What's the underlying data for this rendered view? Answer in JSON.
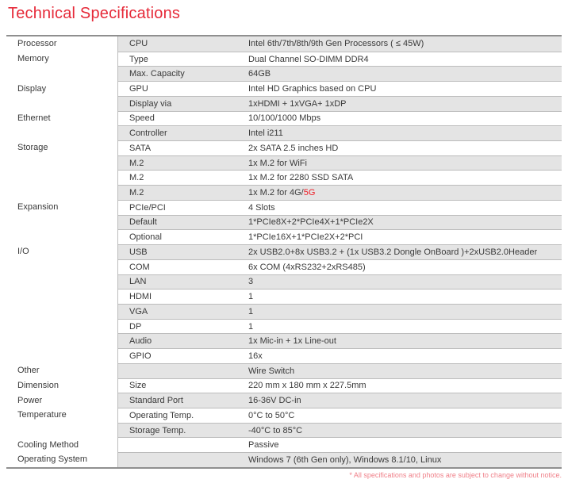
{
  "title": "Technical Specifications",
  "footnote": "* All specifications and photos are subject to change without notice.",
  "colors": {
    "accent_red": "#e62a39",
    "highlight_red": "#ee1c25",
    "footnote_red": "#f0818a",
    "row_shade": "#e4e4e4",
    "line_gray": "#bcbcbc",
    "border_dark": "#8f8f8f",
    "text_color": "#3a3a3a"
  },
  "table": {
    "rows": [
      {
        "category": "Processor",
        "sub": "CPU",
        "value": "Intel 6th/7th/8th/9th Gen Processors ( ≤ 45W)"
      },
      {
        "category": "Memory",
        "sub": "Type",
        "value": "Dual Channel SO-DIMM DDR4"
      },
      {
        "category": "",
        "sub": "Max. Capacity",
        "value": "64GB"
      },
      {
        "category": "Display",
        "sub": "GPU",
        "value": "Intel HD Graphics based on CPU"
      },
      {
        "category": "",
        "sub": "Display via",
        "value": "1xHDMI + 1xVGA+ 1xDP"
      },
      {
        "category": "Ethernet",
        "sub": "Speed",
        "value": "10/100/1000 Mbps"
      },
      {
        "category": "",
        "sub": "Controller",
        "value": "Intel i211"
      },
      {
        "category": "Storage",
        "sub": "SATA",
        "value": "2x SATA 2.5 inches HD"
      },
      {
        "category": "",
        "sub": "M.2",
        "value": "1x M.2 for WiFi"
      },
      {
        "category": "",
        "sub": "M.2",
        "value": "1x M.2 for 2280 SSD SATA"
      },
      {
        "category": "",
        "sub": "M.2",
        "value": "1x M.2 for 4G/",
        "value_red": "5G"
      },
      {
        "category": "Expansion",
        "sub": "PCIe/PCI",
        "value": "4 Slots"
      },
      {
        "category": "",
        "sub": "Default",
        "value": "1*PCIe8X+2*PCIe4X+1*PCIe2X"
      },
      {
        "category": "",
        "sub": "Optional",
        "value": "1*PCIe16X+1*PCIe2X+2*PCI"
      },
      {
        "category": "I/O",
        "sub": "USB",
        "value": "2x USB2.0+8x USB3.2 + (1x USB3.2 Dongle OnBoard )+2xUSB2.0Header"
      },
      {
        "category": "",
        "sub": "COM",
        "value": "6x COM (4xRS232+2xRS485)"
      },
      {
        "category": "",
        "sub": "LAN",
        "value": "3"
      },
      {
        "category": "",
        "sub": "HDMI",
        "value": "1"
      },
      {
        "category": "",
        "sub": "VGA",
        "value": "1"
      },
      {
        "category": "",
        "sub": "DP",
        "value": "1"
      },
      {
        "category": "",
        "sub": "Audio",
        "value": "1x Mic-in + 1x Line-out"
      },
      {
        "category": "",
        "sub": "GPIO",
        "value": "16x"
      },
      {
        "category": "Other",
        "sub": "",
        "value": "Wire Switch"
      },
      {
        "category": "Dimension",
        "sub": "Size",
        "value": "220 mm x 180 mm x 227.5mm"
      },
      {
        "category": "Power",
        "sub": "Standard Port",
        "value": "16-36V DC-in"
      },
      {
        "category": "Temperature",
        "sub": "Operating Temp.",
        "value": "0°C to 50°C"
      },
      {
        "category": "",
        "sub": "Storage Temp.",
        "value": "-40°C to 85°C"
      },
      {
        "category": "Cooling Method",
        "sub": "",
        "value": "Passive"
      },
      {
        "category": "Operating System",
        "sub": "",
        "value": "Windows 7 (6th Gen only), Windows 8.1/10, Linux"
      }
    ]
  }
}
